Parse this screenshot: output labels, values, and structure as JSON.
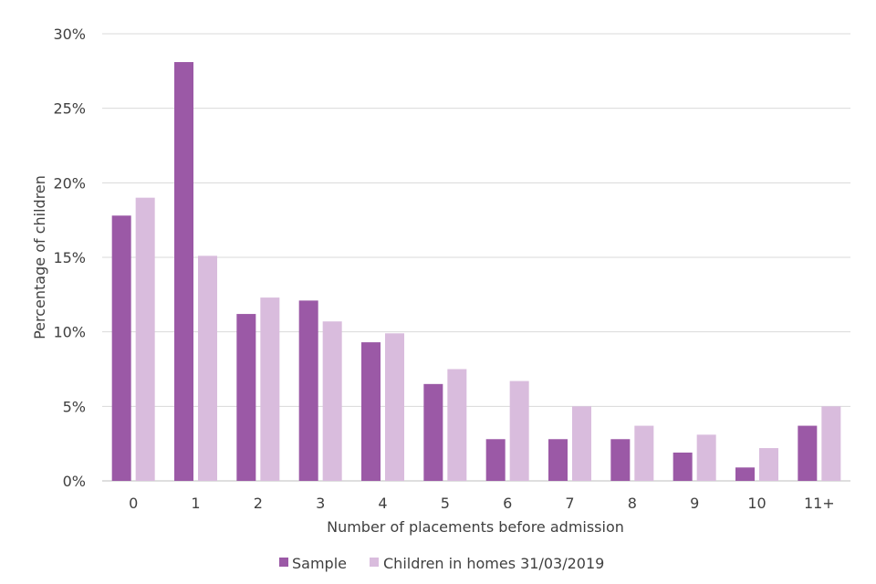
{
  "chart_data": {
    "type": "bar",
    "title": "",
    "xlabel": "Number of placements before admission",
    "ylabel": "Percentage of children",
    "categories": [
      "0",
      "1",
      "2",
      "3",
      "4",
      "5",
      "6",
      "7",
      "8",
      "9",
      "10",
      "11+"
    ],
    "series": [
      {
        "name": "Sample",
        "color": "#9b59a6",
        "values": [
          17.8,
          28.1,
          11.2,
          12.1,
          9.3,
          6.5,
          2.8,
          2.8,
          2.8,
          1.9,
          0.9,
          3.7
        ]
      },
      {
        "name": "Children in homes 31/03/2019",
        "color": "#d9bcdd",
        "values": [
          19.0,
          15.1,
          12.3,
          10.7,
          9.9,
          7.5,
          6.7,
          5.0,
          3.7,
          3.1,
          2.2,
          5.0
        ]
      }
    ],
    "ylim": [
      0,
      30
    ],
    "yticks": [
      0,
      5,
      10,
      15,
      20,
      25,
      30
    ],
    "ytick_labels": [
      "0%",
      "5%",
      "10%",
      "15%",
      "20%",
      "25%",
      "30%"
    ],
    "grid": true,
    "legend_position": "bottom-center"
  }
}
